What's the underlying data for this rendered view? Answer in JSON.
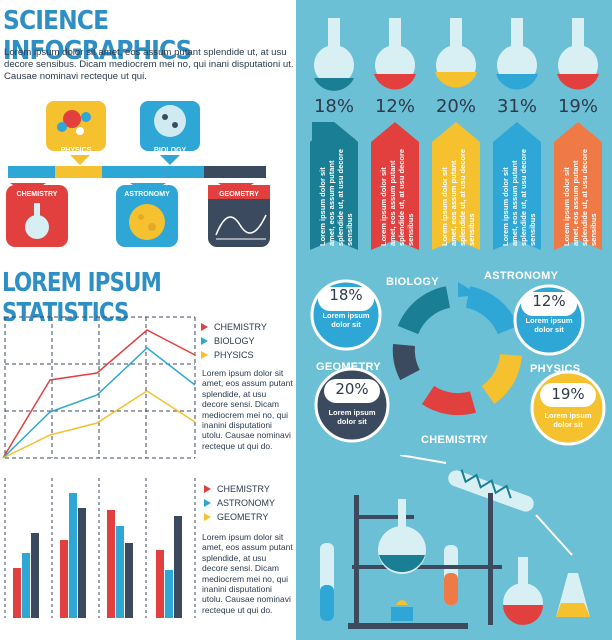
{
  "left": {
    "title": "SCIENCE INFOGRAPHICS",
    "intro": "Lorem ipsum dolor sit amet, eos assum putant splendide ut, at usu decore sensibus. Dicam mediocrem mei no, qui inani disputationi ut. Causae nominavi recteque ut qui.",
    "subjects": [
      "PHYSICS",
      "BIOLOGY",
      "CHEMISTRY",
      "ASTRONOMY",
      "GEOMETRY"
    ],
    "stats_title": "LOREM IPSUM STATISTICS",
    "line_legend": [
      "CHEMISTRY",
      "BIOLOGY",
      "PHYSICS"
    ],
    "bar_legend": [
      "CHEMISTRY",
      "ASTRONOMY",
      "GEOMETRY"
    ],
    "chart_text": "Lorem ipsum dolor sit amet, eos assum putant splendide, at usu decore sensi. Dicam mediocrem mei no, qui inanini disputationi utolu. Causae nominavi recteque ut qui do.",
    "chart_text2": "Lorem ipsum dolor sit amet, eos assum putant splendide, at usu decore sensi. Dicam mediocrem mei no, qui inanini disputationi utolu. Causae nominavi recteque ut qui do.",
    "colors": {
      "red": "#e2403f",
      "blue": "#2ea6d6",
      "yellow": "#f5c12f",
      "dark": "#3b4a5e"
    }
  },
  "right": {
    "flasks": [
      {
        "pct": "18%",
        "text": "Lorem ipsum dolor sit amet, eos assum putant splendide ut, at usu decore sensibus",
        "color": "#1a7f94"
      },
      {
        "pct": "12%",
        "text": "Lorem ipsum dolor sit amet, eos assum putant splendide ut, at usu decore sensibus",
        "color": "#e2403f"
      },
      {
        "pct": "20%",
        "text": "Lorem ipsum dolor sit amet, eos assum putant splendide ut, at usu decore sensibus",
        "color": "#f5c12f"
      },
      {
        "pct": "31%",
        "text": "Lorem ipsum dolor sit amet, eos assum putant splendide ut, at usu decore sensibus",
        "color": "#2ea6d6"
      },
      {
        "pct": "19%",
        "text": "Lorem ipsum dolor sit amet, eos assum putant splendide ut, at usu decore sensibus",
        "color": "#ef7a45"
      }
    ],
    "bubbles": [
      {
        "label": "BIOLOGY",
        "pct": "18%",
        "text": "Lorem ipsum dolor sit"
      },
      {
        "label": "ASTRONOMY",
        "pct": "12%",
        "text": "Lorem ipsum dolor sit"
      },
      {
        "label": "GEOMETRY",
        "pct": "20%",
        "text": "Lorem ipsum dolor sit"
      },
      {
        "label": "PHYSICS",
        "pct": "19%",
        "text": "Lorem ipsum dolor sit"
      }
    ],
    "chemistry_label": "CHEMISTRY"
  }
}
